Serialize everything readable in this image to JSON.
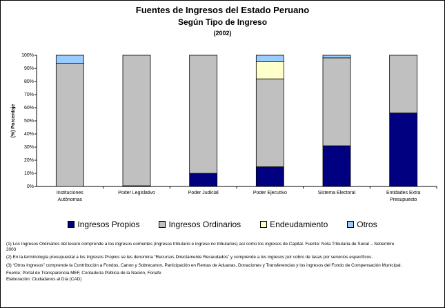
{
  "chart_data": {
    "type": "stacked_bar_100",
    "title": "Fuentes de Ingresos del Estado Peruano",
    "subtitle": "Según Tipo de Ingreso",
    "period": "(2002)",
    "ylabel": "(%) Porcentaje",
    "categories": [
      "Instituciones Autónomas",
      "Poder Legislativo",
      "Poder Judicial",
      "Poder Ejecutivo",
      "Sistema Electoral",
      "Entidades Extra Presupuesto"
    ],
    "series": [
      {
        "name": "Ingresos Propios",
        "color": "#000080",
        "values": [
          0,
          0.5,
          10,
          15,
          31,
          56
        ]
      },
      {
        "name": "Ingresos Ordinarios",
        "color": "#c0c0c0",
        "values": [
          94,
          99.5,
          90,
          67,
          67,
          44
        ]
      },
      {
        "name": "Endeudamiento",
        "color": "#ffffcc",
        "values": [
          0,
          0,
          0,
          13,
          0,
          0
        ]
      },
      {
        "name": "Otros",
        "color": "#99ccff",
        "values": [
          6,
          0,
          0,
          5,
          2,
          0
        ]
      }
    ],
    "ylim": [
      0,
      100
    ],
    "yticks": [
      {
        "value": 0,
        "label": "0%"
      },
      {
        "value": 10,
        "label": "10%"
      },
      {
        "value": 20,
        "label": "20%"
      },
      {
        "value": 30,
        "label": "30%"
      },
      {
        "value": 40,
        "label": "40%"
      },
      {
        "value": 50,
        "label": "50%"
      },
      {
        "value": 60,
        "label": "60%"
      },
      {
        "value": 70,
        "label": "70%"
      },
      {
        "value": 80,
        "label": "80%"
      },
      {
        "value": 90,
        "label": "90%"
      },
      {
        "value": 100,
        "label": "100%"
      }
    ],
    "grid": false,
    "legend": "bottom",
    "notes": [
      "(1) Los Ingresos Ordinarios del tesoro comprende a los ingresos corrientes (ingresos tributario e ingreso no tributarios) así como los ingresos de Capital. Fuente: Nota Tributaria de Sunat – Setiembre 2003",
      "(2) En la terminología presupuestal a los Ingresos Propios se les denomina “Recursos Directamente Recaudados”  y comprende a los ingresos por cobro de tasas por servicios específicos.",
      "(3) “Otros Ingresos” comprende la Contribución a Fondos, Canon y Sobrecanon, Participación en Rentas de Aduanas, Donaciones y Transferencias y los ingresos del Fondo de Compensación Municipal."
    ],
    "source": "Fuente: Portal de Transparencia MEF, Contaduría Pública de la Nación, Fonafe",
    "credit": "Elaboración: Ciudadanos al Día (CAD)"
  }
}
